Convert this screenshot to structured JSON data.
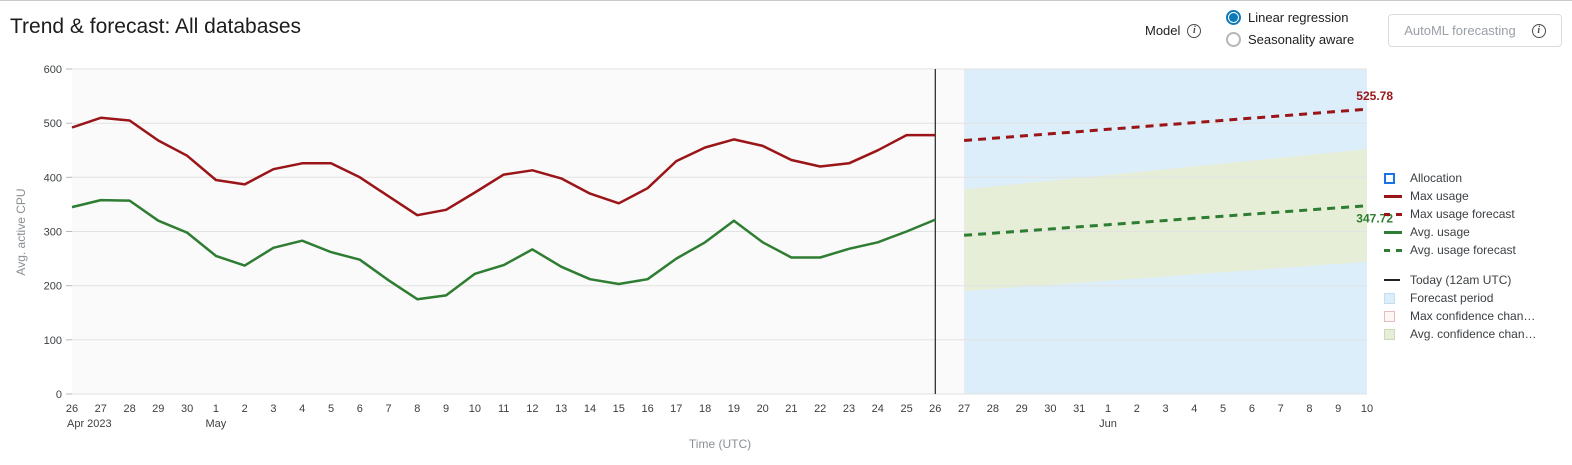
{
  "title": "Trend & forecast: All databases",
  "model": {
    "label": "Model",
    "options": [
      {
        "label": "Linear regression",
        "selected": true
      },
      {
        "label": "Seasonality aware",
        "selected": false
      }
    ]
  },
  "automl": {
    "label": "AutoML forecasting"
  },
  "colors": {
    "max_usage": "#9a1518",
    "avg_usage": "#2e7d32",
    "forecast_period": "#ddeefb",
    "avg_confidence": "#e6eed8",
    "max_confidence_fill": "#fdf6f6",
    "max_confidence_border": "#e6bdbd",
    "allocation": "#1a73e8",
    "today_line": "#212121",
    "grid": "#e2e2e2",
    "plot_bg": "#fafafa",
    "radio_selected": "#0d7ab8",
    "radio_unselected": "#b6b6b6",
    "border": "#dadce0",
    "disabled_text": "#9aa0a6"
  },
  "chart_data": {
    "type": "line",
    "title": "Trend & forecast: All databases",
    "xlabel": "Time (UTC)",
    "ylabel": "Avg. active CPU",
    "ylim": [
      0,
      600
    ],
    "yticks": [
      0,
      100,
      200,
      300,
      400,
      500,
      600
    ],
    "x_labels": [
      "26",
      "27",
      "28",
      "29",
      "30",
      "1",
      "2",
      "3",
      "4",
      "5",
      "6",
      "7",
      "8",
      "9",
      "10",
      "11",
      "12",
      "13",
      "14",
      "15",
      "16",
      "17",
      "18",
      "19",
      "20",
      "21",
      "22",
      "23",
      "24",
      "25",
      "26",
      "27",
      "28",
      "29",
      "30",
      "31",
      "1",
      "2",
      "3",
      "4",
      "5",
      "6",
      "7",
      "8",
      "9",
      "10"
    ],
    "month_labels": [
      {
        "index": 0,
        "label": "Apr 2023"
      },
      {
        "index": 5,
        "label": "May"
      },
      {
        "index": 36,
        "label": "Jun"
      }
    ],
    "today_index": 30,
    "forecast_start_index": 31,
    "series": [
      {
        "name": "Max usage",
        "color_key": "max_usage",
        "dash": false,
        "start_index": 0,
        "values": [
          492,
          510,
          505,
          468,
          440,
          395,
          387,
          415,
          426,
          426,
          400,
          365,
          330,
          340,
          372,
          405,
          413,
          398,
          370,
          352,
          380,
          430,
          455,
          470,
          458,
          432,
          420,
          426,
          450,
          478,
          478
        ]
      },
      {
        "name": "Max usage forecast",
        "color_key": "max_usage",
        "dash": true,
        "start_index": 31,
        "values": [
          468,
          472.1,
          476.3,
          480.4,
          484.5,
          488.6,
          492.8,
          496.9,
          501,
          505.1,
          509.3,
          513.4,
          517.5,
          521.7,
          525.78
        ],
        "end_label": "525.78",
        "label_position": "above"
      },
      {
        "name": "Avg. usage",
        "color_key": "avg_usage",
        "dash": false,
        "start_index": 0,
        "values": [
          345,
          358,
          357,
          320,
          298,
          255,
          237,
          270,
          283,
          262,
          248,
          210,
          175,
          182,
          222,
          238,
          267,
          235,
          212,
          203,
          212,
          250,
          280,
          320,
          280,
          252,
          252,
          268,
          280,
          300,
          322
        ]
      },
      {
        "name": "Avg. usage forecast",
        "color_key": "avg_usage",
        "dash": true,
        "start_index": 31,
        "values": [
          293,
          296.9,
          300.8,
          304.7,
          308.6,
          312.5,
          316.5,
          320.4,
          324.3,
          328.2,
          332.1,
          336,
          339.9,
          343.8,
          347.72
        ],
        "end_label": "347.72",
        "label_position": "below"
      }
    ],
    "confidence_band": {
      "name": "Avg. confidence channel",
      "start_index": 31,
      "upper": [
        378,
        383.3,
        388.6,
        393.9,
        399.1,
        404.4,
        409.7,
        415,
        420.3,
        425.6,
        430.9,
        436.1,
        441.4,
        446.7,
        452
      ],
      "lower": [
        190,
        193.9,
        197.7,
        201.6,
        205.4,
        209.3,
        213.1,
        217,
        220.9,
        224.7,
        228.6,
        232.4,
        236.3,
        240.1,
        244
      ]
    },
    "legend_position": "right",
    "grid": true
  },
  "legend": {
    "items": [
      {
        "label": "Allocation",
        "swatch": "allocation"
      },
      {
        "label": "Max usage",
        "swatch": "line-max"
      },
      {
        "label": "Max usage forecast",
        "swatch": "dash-max"
      },
      {
        "label": "Avg. usage",
        "swatch": "line-avg"
      },
      {
        "label": "Avg. usage forecast",
        "swatch": "dash-avg"
      },
      {
        "label": "Today (12am UTC)",
        "swatch": "today",
        "gap_before": true
      },
      {
        "label": "Forecast period",
        "swatch": "forecast"
      },
      {
        "label": "Max confidence chan…",
        "swatch": "max-conf"
      },
      {
        "label": "Avg. confidence chan…",
        "swatch": "avg-conf"
      }
    ]
  }
}
